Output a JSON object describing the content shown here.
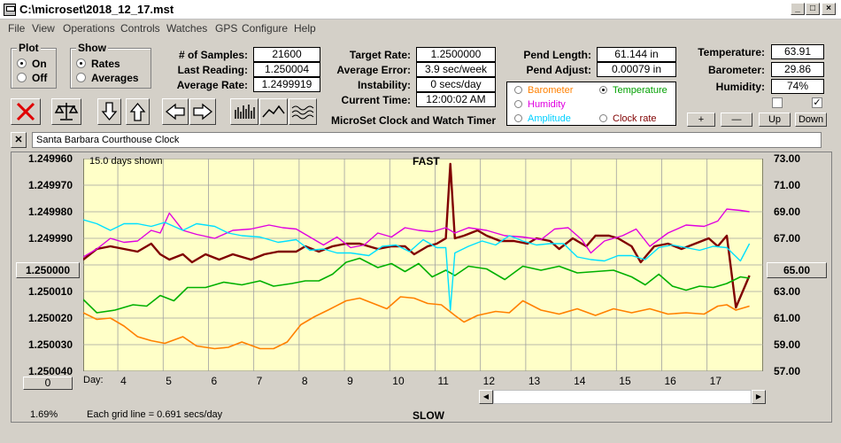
{
  "window": {
    "title": "C:\\microset\\2018_12_17.mst"
  },
  "menu": [
    "File",
    "View",
    "Operations",
    "Controls",
    "Watches",
    "GPS",
    "Configure",
    "Help"
  ],
  "plot_group": {
    "title": "Plot",
    "on": "On",
    "off": "Off",
    "selected": "On"
  },
  "show_group": {
    "title": "Show",
    "rates": "Rates",
    "averages": "Averages",
    "selected": "Rates"
  },
  "stats": {
    "samples_label": "# of Samples:",
    "samples": "21600",
    "last_label": "Last Reading:",
    "last": "1.250004",
    "avg_label": "Average Rate:",
    "avg": "1.2499919"
  },
  "rates": {
    "target_label": "Target Rate:",
    "target": "1.2500000",
    "error_label": "Average Error:",
    "error": "3.9 sec/week",
    "instability_label": "Instability:",
    "instability": "0 secs/day",
    "time_label": "Current Time:",
    "time": "12:00:02 AM",
    "app_title": "MicroSet Clock and Watch Timer"
  },
  "pendulum": {
    "length_label": "Pend Length:",
    "length": "61.144 in",
    "adjust_label": "Pend Adjust:",
    "adjust": "0.00079 in"
  },
  "sensor_legend": [
    {
      "label": "Barometer",
      "color": "#ff8000",
      "selected": false
    },
    {
      "label": "Temperature",
      "color": "#00a000",
      "selected": true
    },
    {
      "label": "Humidity",
      "color": "#e000e0",
      "selected": false
    },
    {
      "label": "Amplitude",
      "color": "#00d0ff",
      "selected": false
    },
    {
      "label": "Clock rate",
      "color": "#800000",
      "selected": false
    }
  ],
  "environment": {
    "temp_label": "Temperature:",
    "temp": "63.91",
    "baro_label": "Barometer:",
    "baro": "29.86",
    "hum_label": "Humidity:",
    "hum": "74%"
  },
  "scale_buttons": {
    "plus": "+",
    "minus": "—",
    "up": "Up",
    "down": "Down"
  },
  "clock_name": "Santa Barbara Courthouse Clock",
  "chart_labels": {
    "days_shown": "15.0 days shown",
    "fast": "FAST",
    "slow": "SLOW",
    "grid_note": "Each grid line = 0.691 secs/day",
    "day_prefix": "Day:",
    "percent": "1.69%",
    "center_left": "1.250000",
    "center_right": "65.00",
    "offset": "0"
  },
  "chart_data": {
    "type": "line",
    "title": "",
    "xlabel": "Day:",
    "x_ticks": [
      4,
      5,
      6,
      7,
      8,
      9,
      10,
      11,
      12,
      13,
      14,
      15,
      16,
      17
    ],
    "xlim": [
      3.1,
      18.1
    ],
    "y_left_ticks": [
      "1.249960",
      "1.249970",
      "1.249980",
      "1.249990",
      "1.250000",
      "1.250010",
      "1.250020",
      "1.250030",
      "1.250040"
    ],
    "y_left_range": [
      1.24996,
      1.25004
    ],
    "y_right_ticks": [
      "73.00",
      "71.00",
      "69.00",
      "67.00",
      "65.00",
      "63.00",
      "61.00",
      "59.00",
      "57.00"
    ],
    "y_right_range": [
      57,
      73
    ],
    "grid": true,
    "series": [
      {
        "name": "Clock rate",
        "color": "#800000",
        "axis": "left",
        "width": 2.4,
        "points": [
          [
            3.1,
            1.249998
          ],
          [
            3.4,
            1.249994
          ],
          [
            3.7,
            1.249993
          ],
          [
            4.0,
            1.249994
          ],
          [
            4.3,
            1.249995
          ],
          [
            4.6,
            1.249992
          ],
          [
            4.8,
            1.249996
          ],
          [
            5.0,
            1.249998
          ],
          [
            5.3,
            1.249996
          ],
          [
            5.5,
            1.249999
          ],
          [
            5.8,
            1.249996
          ],
          [
            6.1,
            1.249998
          ],
          [
            6.4,
            1.249996
          ],
          [
            6.8,
            1.249998
          ],
          [
            7.1,
            1.249996
          ],
          [
            7.4,
            1.249995
          ],
          [
            7.8,
            1.249995
          ],
          [
            8.0,
            1.249993
          ],
          [
            8.3,
            1.249995
          ],
          [
            8.6,
            1.249993
          ],
          [
            8.9,
            1.249992
          ],
          [
            9.2,
            1.249992
          ],
          [
            9.6,
            1.249994
          ],
          [
            9.9,
            1.249993
          ],
          [
            10.2,
            1.249993
          ],
          [
            10.4,
            1.249996
          ],
          [
            10.7,
            1.249993
          ],
          [
            10.9,
            1.249992
          ],
          [
            11.1,
            1.24999
          ],
          [
            11.2,
            1.249962
          ],
          [
            11.3,
            1.24999
          ],
          [
            11.5,
            1.249989
          ],
          [
            11.8,
            1.249987
          ],
          [
            12.0,
            1.249989
          ],
          [
            12.3,
            1.249991
          ],
          [
            12.6,
            1.249991
          ],
          [
            12.9,
            1.249992
          ],
          [
            13.1,
            1.24999
          ],
          [
            13.4,
            1.249991
          ],
          [
            13.6,
            1.249994
          ],
          [
            13.9,
            1.24999
          ],
          [
            14.2,
            1.249993
          ],
          [
            14.4,
            1.249989
          ],
          [
            14.7,
            1.249989
          ],
          [
            14.9,
            1.24999
          ],
          [
            15.2,
            1.249993
          ],
          [
            15.4,
            1.249999
          ],
          [
            15.7,
            1.249993
          ],
          [
            16.0,
            1.249992
          ],
          [
            16.3,
            1.249994
          ],
          [
            16.6,
            1.249992
          ],
          [
            16.9,
            1.24999
          ],
          [
            17.1,
            1.249993
          ],
          [
            17.3,
            1.249989
          ],
          [
            17.5,
            1.250016
          ],
          [
            17.8,
            1.250004
          ]
        ]
      },
      {
        "name": "Temperature",
        "color": "#00b000",
        "axis": "right",
        "width": 1.6,
        "points": [
          [
            3.1,
            62.4
          ],
          [
            3.4,
            61.4
          ],
          [
            3.8,
            61.6
          ],
          [
            4.2,
            62.0
          ],
          [
            4.5,
            61.9
          ],
          [
            4.8,
            62.7
          ],
          [
            5.1,
            62.3
          ],
          [
            5.4,
            63.3
          ],
          [
            5.8,
            63.3
          ],
          [
            6.2,
            63.7
          ],
          [
            6.6,
            63.5
          ],
          [
            7.0,
            63.8
          ],
          [
            7.3,
            63.4
          ],
          [
            7.7,
            63.6
          ],
          [
            8.0,
            63.8
          ],
          [
            8.3,
            63.8
          ],
          [
            8.6,
            64.3
          ],
          [
            8.9,
            65.2
          ],
          [
            9.2,
            65.5
          ],
          [
            9.6,
            64.8
          ],
          [
            9.9,
            65.1
          ],
          [
            10.2,
            64.5
          ],
          [
            10.5,
            65.1
          ],
          [
            10.8,
            64.1
          ],
          [
            11.1,
            64.6
          ],
          [
            11.3,
            64.2
          ],
          [
            11.6,
            64.9
          ],
          [
            12.0,
            64.7
          ],
          [
            12.4,
            63.9
          ],
          [
            12.8,
            64.9
          ],
          [
            13.2,
            64.6
          ],
          [
            13.6,
            64.9
          ],
          [
            14.0,
            64.4
          ],
          [
            14.4,
            64.5
          ],
          [
            14.8,
            64.6
          ],
          [
            15.2,
            64.1
          ],
          [
            15.5,
            63.5
          ],
          [
            15.8,
            64.3
          ],
          [
            16.1,
            63.4
          ],
          [
            16.4,
            63.1
          ],
          [
            16.7,
            63.4
          ],
          [
            17.0,
            63.3
          ],
          [
            17.3,
            63.6
          ],
          [
            17.6,
            64.1
          ],
          [
            17.8,
            64.0
          ]
        ]
      },
      {
        "name": "Barometer",
        "color": "#ff8000",
        "axis": "right",
        "width": 1.6,
        "points": [
          [
            3.1,
            61.4
          ],
          [
            3.4,
            60.9
          ],
          [
            3.7,
            61.0
          ],
          [
            4.0,
            60.4
          ],
          [
            4.3,
            59.6
          ],
          [
            4.6,
            59.3
          ],
          [
            4.9,
            59.1
          ],
          [
            5.3,
            59.6
          ],
          [
            5.6,
            58.9
          ],
          [
            6.0,
            58.7
          ],
          [
            6.3,
            58.8
          ],
          [
            6.6,
            59.2
          ],
          [
            7.0,
            58.7
          ],
          [
            7.3,
            58.7
          ],
          [
            7.6,
            59.2
          ],
          [
            7.9,
            60.5
          ],
          [
            8.2,
            61.1
          ],
          [
            8.5,
            61.6
          ],
          [
            8.9,
            62.3
          ],
          [
            9.2,
            62.5
          ],
          [
            9.5,
            62.1
          ],
          [
            9.8,
            61.7
          ],
          [
            10.1,
            62.6
          ],
          [
            10.4,
            62.5
          ],
          [
            10.7,
            62.1
          ],
          [
            11.0,
            62.0
          ],
          [
            11.3,
            61.2
          ],
          [
            11.5,
            60.7
          ],
          [
            11.8,
            61.2
          ],
          [
            12.2,
            61.5
          ],
          [
            12.5,
            61.4
          ],
          [
            12.8,
            62.3
          ],
          [
            13.2,
            61.6
          ],
          [
            13.6,
            61.3
          ],
          [
            14.0,
            61.7
          ],
          [
            14.4,
            61.2
          ],
          [
            14.8,
            61.7
          ],
          [
            15.2,
            61.4
          ],
          [
            15.6,
            61.7
          ],
          [
            16.0,
            61.3
          ],
          [
            16.4,
            61.4
          ],
          [
            16.8,
            61.3
          ],
          [
            17.1,
            61.9
          ],
          [
            17.3,
            62.0
          ],
          [
            17.5,
            61.6
          ],
          [
            17.8,
            61.9
          ]
        ]
      },
      {
        "name": "Humidity",
        "color": "#e000e0",
        "axis": "right",
        "width": 1.4,
        "points": [
          [
            3.1,
            65.6
          ],
          [
            3.4,
            66.2
          ],
          [
            3.7,
            67.0
          ],
          [
            4.0,
            66.7
          ],
          [
            4.3,
            66.8
          ],
          [
            4.6,
            67.6
          ],
          [
            4.8,
            67.4
          ],
          [
            5.0,
            68.9
          ],
          [
            5.3,
            67.6
          ],
          [
            5.6,
            67.3
          ],
          [
            6.0,
            67.0
          ],
          [
            6.4,
            67.6
          ],
          [
            6.8,
            67.7
          ],
          [
            7.2,
            68.0
          ],
          [
            7.5,
            67.8
          ],
          [
            7.8,
            67.7
          ],
          [
            8.1,
            67.1
          ],
          [
            8.4,
            66.5
          ],
          [
            8.7,
            67.1
          ],
          [
            9.0,
            66.3
          ],
          [
            9.3,
            66.5
          ],
          [
            9.6,
            67.4
          ],
          [
            9.9,
            67.1
          ],
          [
            10.2,
            67.8
          ],
          [
            10.5,
            67.6
          ],
          [
            10.8,
            67.5
          ],
          [
            11.1,
            67.8
          ],
          [
            11.3,
            67.4
          ],
          [
            11.6,
            67.8
          ],
          [
            12.0,
            67.6
          ],
          [
            12.4,
            67.2
          ],
          [
            12.8,
            67.1
          ],
          [
            13.2,
            66.9
          ],
          [
            13.5,
            67.7
          ],
          [
            13.8,
            67.8
          ],
          [
            14.1,
            66.9
          ],
          [
            14.3,
            65.9
          ],
          [
            14.6,
            66.8
          ],
          [
            15.0,
            67.2
          ],
          [
            15.3,
            67.7
          ],
          [
            15.6,
            66.4
          ],
          [
            16.0,
            67.4
          ],
          [
            16.4,
            68.0
          ],
          [
            16.8,
            67.9
          ],
          [
            17.1,
            68.3
          ],
          [
            17.3,
            69.2
          ],
          [
            17.6,
            69.1
          ],
          [
            17.8,
            69.0
          ]
        ]
      },
      {
        "name": "Amplitude",
        "color": "#00e0ff",
        "axis": "right",
        "width": 1.4,
        "points": [
          [
            3.1,
            68.4
          ],
          [
            3.4,
            68.1
          ],
          [
            3.7,
            67.6
          ],
          [
            4.0,
            68.1
          ],
          [
            4.3,
            68.1
          ],
          [
            4.6,
            67.9
          ],
          [
            4.9,
            68.2
          ],
          [
            5.3,
            67.6
          ],
          [
            5.6,
            68.1
          ],
          [
            6.0,
            67.9
          ],
          [
            6.3,
            67.4
          ],
          [
            6.6,
            67.2
          ],
          [
            7.0,
            67.1
          ],
          [
            7.4,
            66.7
          ],
          [
            7.8,
            66.9
          ],
          [
            8.1,
            66.1
          ],
          [
            8.4,
            66.2
          ],
          [
            8.7,
            65.9
          ],
          [
            9.0,
            65.9
          ],
          [
            9.4,
            65.7
          ],
          [
            9.7,
            66.4
          ],
          [
            10.0,
            66.5
          ],
          [
            10.3,
            66.0
          ],
          [
            10.6,
            66.9
          ],
          [
            10.9,
            66.3
          ],
          [
            11.1,
            66.3
          ],
          [
            11.2,
            61.6
          ],
          [
            11.3,
            65.9
          ],
          [
            11.6,
            66.4
          ],
          [
            11.9,
            66.8
          ],
          [
            12.2,
            66.5
          ],
          [
            12.5,
            67.2
          ],
          [
            12.8,
            66.8
          ],
          [
            13.1,
            66.5
          ],
          [
            13.4,
            66.6
          ],
          [
            13.7,
            66.6
          ],
          [
            14.0,
            65.6
          ],
          [
            14.3,
            65.4
          ],
          [
            14.6,
            65.3
          ],
          [
            14.9,
            65.7
          ],
          [
            15.2,
            65.7
          ],
          [
            15.5,
            65.4
          ],
          [
            15.8,
            66.3
          ],
          [
            16.1,
            66.5
          ],
          [
            16.4,
            66.3
          ],
          [
            16.7,
            66.1
          ],
          [
            17.0,
            66.4
          ],
          [
            17.3,
            66.3
          ],
          [
            17.6,
            65.3
          ],
          [
            17.8,
            66.6
          ]
        ]
      }
    ]
  }
}
